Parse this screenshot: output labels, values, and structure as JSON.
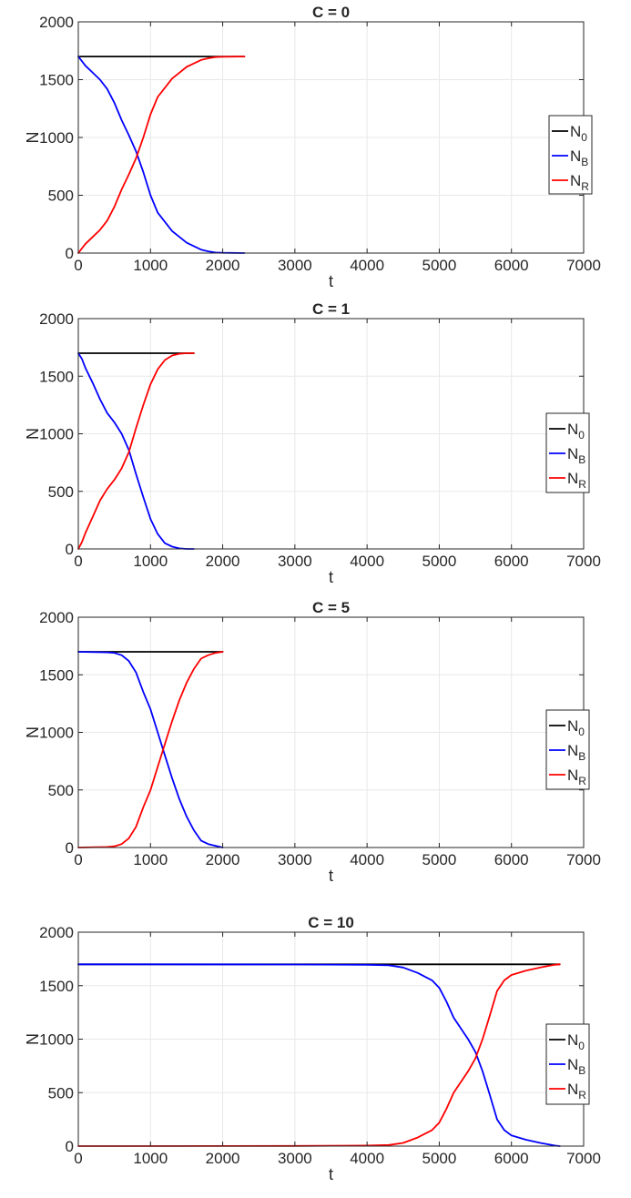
{
  "chart_data": [
    {
      "type": "line",
      "title": "C = 0",
      "xlabel": "t",
      "ylabel": "N",
      "xlim": [
        0,
        7000
      ],
      "ylim": [
        0,
        2000
      ],
      "xticks": [
        "0",
        "1000",
        "2000",
        "3000",
        "4000",
        "5000",
        "6000",
        "7000"
      ],
      "yticks": [
        "0",
        "500",
        "1000",
        "1500",
        "2000"
      ],
      "grid": true,
      "legend_position": "right",
      "series": [
        {
          "name": "N",
          "sub": "0",
          "color": "#000000",
          "x": [
            0,
            2300
          ],
          "y": [
            1700,
            1700
          ]
        },
        {
          "name": "N",
          "sub": "B",
          "color": "#0000ff",
          "x": [
            0,
            100,
            200,
            300,
            400,
            500,
            600,
            700,
            800,
            900,
            1000,
            1100,
            1200,
            1300,
            1400,
            1500,
            1600,
            1700,
            1800,
            1900,
            2000,
            2300
          ],
          "y": [
            1700,
            1620,
            1560,
            1500,
            1420,
            1300,
            1150,
            1020,
            880,
            700,
            500,
            350,
            270,
            190,
            140,
            90,
            60,
            30,
            15,
            5,
            2,
            0
          ]
        },
        {
          "name": "N",
          "sub": "R",
          "color": "#ff0000",
          "x": [
            0,
            100,
            200,
            300,
            400,
            500,
            600,
            700,
            800,
            900,
            1000,
            1100,
            1200,
            1300,
            1400,
            1500,
            1600,
            1700,
            1800,
            1900,
            2000,
            2300
          ],
          "y": [
            0,
            80,
            140,
            200,
            280,
            400,
            550,
            680,
            820,
            1000,
            1200,
            1350,
            1430,
            1510,
            1560,
            1610,
            1640,
            1670,
            1685,
            1695,
            1698,
            1700
          ]
        }
      ]
    },
    {
      "type": "line",
      "title": "C = 1",
      "xlabel": "t",
      "ylabel": "N",
      "xlim": [
        0,
        7000
      ],
      "ylim": [
        0,
        2000
      ],
      "xticks": [
        "0",
        "1000",
        "2000",
        "3000",
        "4000",
        "5000",
        "6000",
        "7000"
      ],
      "yticks": [
        "0",
        "500",
        "1000",
        "1500",
        "2000"
      ],
      "grid": true,
      "legend_position": "right",
      "series": [
        {
          "name": "N",
          "sub": "0",
          "color": "#000000",
          "x": [
            0,
            1600
          ],
          "y": [
            1700,
            1700
          ]
        },
        {
          "name": "N",
          "sub": "B",
          "color": "#0000ff",
          "x": [
            0,
            50,
            100,
            200,
            300,
            400,
            500,
            600,
            700,
            800,
            900,
            1000,
            1100,
            1200,
            1300,
            1400,
            1500,
            1600
          ],
          "y": [
            1700,
            1650,
            1570,
            1440,
            1300,
            1180,
            1100,
            1000,
            860,
            650,
            450,
            260,
            130,
            50,
            20,
            5,
            0,
            0
          ]
        },
        {
          "name": "N",
          "sub": "R",
          "color": "#ff0000",
          "x": [
            0,
            50,
            100,
            200,
            300,
            400,
            500,
            600,
            700,
            800,
            900,
            1000,
            1100,
            1200,
            1300,
            1400,
            1500,
            1600
          ],
          "y": [
            0,
            60,
            140,
            280,
            420,
            520,
            600,
            700,
            840,
            1050,
            1250,
            1430,
            1560,
            1640,
            1680,
            1695,
            1700,
            1700
          ]
        }
      ]
    },
    {
      "type": "line",
      "title": "C = 5",
      "xlabel": "t",
      "ylabel": "N",
      "xlim": [
        0,
        7000
      ],
      "ylim": [
        0,
        2000
      ],
      "xticks": [
        "0",
        "1000",
        "2000",
        "3000",
        "4000",
        "5000",
        "6000",
        "7000"
      ],
      "yticks": [
        "0",
        "500",
        "1000",
        "1500",
        "2000"
      ],
      "grid": true,
      "legend_position": "right",
      "series": [
        {
          "name": "N",
          "sub": "0",
          "color": "#000000",
          "x": [
            0,
            2000
          ],
          "y": [
            1700,
            1700
          ]
        },
        {
          "name": "N",
          "sub": "B",
          "color": "#0000ff",
          "x": [
            0,
            400,
            500,
            600,
            700,
            800,
            900,
            1000,
            1100,
            1200,
            1300,
            1400,
            1500,
            1600,
            1700,
            1800,
            1900,
            2000
          ],
          "y": [
            1700,
            1695,
            1690,
            1670,
            1620,
            1520,
            1350,
            1200,
            1000,
            800,
            600,
            420,
            270,
            150,
            60,
            30,
            15,
            0
          ]
        },
        {
          "name": "N",
          "sub": "R",
          "color": "#ff0000",
          "x": [
            0,
            400,
            500,
            600,
            700,
            800,
            900,
            1000,
            1100,
            1200,
            1300,
            1400,
            1500,
            1600,
            1700,
            1800,
            1900,
            2000
          ],
          "y": [
            0,
            5,
            10,
            30,
            80,
            180,
            350,
            500,
            700,
            900,
            1100,
            1280,
            1430,
            1550,
            1640,
            1670,
            1690,
            1700
          ]
        }
      ]
    },
    {
      "type": "line",
      "title": "C = 10",
      "xlabel": "t",
      "ylabel": "N",
      "xlim": [
        0,
        7000
      ],
      "ylim": [
        0,
        2000
      ],
      "xticks": [
        "0",
        "1000",
        "2000",
        "3000",
        "4000",
        "5000",
        "6000",
        "7000"
      ],
      "yticks": [
        "0",
        "500",
        "1000",
        "1500",
        "2000"
      ],
      "grid": true,
      "legend_position": "right",
      "series": [
        {
          "name": "N",
          "sub": "0",
          "color": "#000000",
          "x": [
            0,
            6670
          ],
          "y": [
            1700,
            1700
          ]
        },
        {
          "name": "N",
          "sub": "B",
          "color": "#0000ff",
          "x": [
            0,
            3000,
            4000,
            4300,
            4500,
            4700,
            4900,
            5000,
            5100,
            5200,
            5300,
            5400,
            5500,
            5600,
            5700,
            5800,
            5900,
            6000,
            6200,
            6400,
            6600,
            6670
          ],
          "y": [
            1700,
            1698,
            1695,
            1690,
            1670,
            1620,
            1550,
            1480,
            1350,
            1200,
            1100,
            1000,
            880,
            700,
            480,
            250,
            150,
            100,
            60,
            30,
            5,
            0
          ]
        },
        {
          "name": "N",
          "sub": "R",
          "color": "#ff0000",
          "x": [
            0,
            3000,
            4000,
            4300,
            4500,
            4700,
            4900,
            5000,
            5100,
            5200,
            5300,
            5400,
            5500,
            5600,
            5700,
            5800,
            5900,
            6000,
            6200,
            6400,
            6600,
            6670
          ],
          "y": [
            0,
            2,
            5,
            10,
            30,
            80,
            150,
            220,
            350,
            500,
            600,
            700,
            820,
            1000,
            1220,
            1450,
            1550,
            1600,
            1640,
            1670,
            1695,
            1700
          ]
        }
      ]
    }
  ]
}
